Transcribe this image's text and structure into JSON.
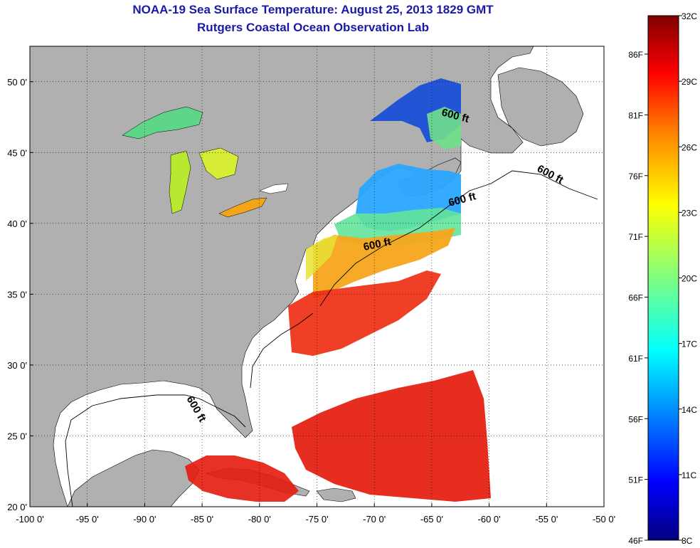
{
  "header": {
    "title": "NOAA-19 Sea Surface Temperature:  August 25, 2013 1829 GMT",
    "subtitle": "Rutgers Coastal Ocean Observation Lab"
  },
  "map": {
    "lon_range": [
      -100,
      -50
    ],
    "lat_range": [
      20,
      52.5
    ],
    "lon_ticks": [
      "-100 0'",
      "-95 0'",
      "-90 0'",
      "-85 0'",
      "-80 0'",
      "-75 0'",
      "-70 0'",
      "-65 0'",
      "-60 0'",
      "-55 0'",
      "-50 0'"
    ],
    "lat_ticks": [
      "20 0'",
      "25 0'",
      "30 0'",
      "35 0'",
      "40 0'",
      "45 0'",
      "50 0'"
    ],
    "isobath_labels": [
      "600 ft",
      "600 ft",
      "600 ft",
      "600 ft",
      "600 ft"
    ],
    "land_color": "#b0b0b0",
    "water_nodata_color": "#ffffff"
  },
  "colorbar": {
    "f_labels": [
      "86F",
      "81F",
      "76F",
      "71F",
      "66F",
      "61F",
      "56F",
      "51F",
      "46F"
    ],
    "c_labels": [
      "32C",
      "29C",
      "26C",
      "23C",
      "20C",
      "17C",
      "14C",
      "11C",
      "8C"
    ],
    "palette": [
      "#00007f",
      "#0000ff",
      "#007fff",
      "#00ffff",
      "#7fff7f",
      "#ffff00",
      "#ff7f00",
      "#ff0000",
      "#7f0000"
    ]
  }
}
